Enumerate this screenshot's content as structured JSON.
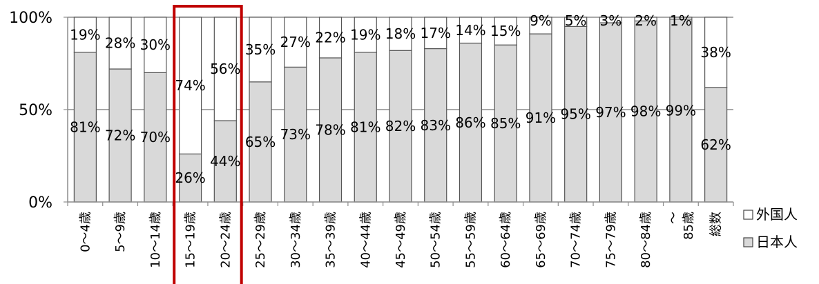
{
  "chart_data": {
    "type": "bar",
    "stacked": true,
    "normalized": true,
    "categories": [
      "0～4歳",
      "5～9歳",
      "10～14歳",
      "15～19歳",
      "20～24歳",
      "25～29歳",
      "30～34歳",
      "35～39歳",
      "40～44歳",
      "45～49歳",
      "50～54歳",
      "55～59歳",
      "60～64歳",
      "65～69歳",
      "70～74歳",
      "75～79歳",
      "80～84歳",
      "～\n85歳",
      "総数"
    ],
    "series": [
      {
        "name": "日本人",
        "color": "#d9d9d9",
        "values": [
          81,
          72,
          70,
          26,
          44,
          65,
          73,
          78,
          81,
          82,
          83,
          86,
          85,
          91,
          95,
          97,
          98,
          99,
          62
        ],
        "labels": [
          "81%",
          "72%",
          "70%",
          "26%",
          "44%",
          "65%",
          "73%",
          "78%",
          "81%",
          "82%",
          "83%",
          "86%",
          "85%",
          "91%",
          "95%",
          "97%",
          "98%",
          "99%",
          "62%"
        ]
      },
      {
        "name": "外国人",
        "color": "#ffffff",
        "values": [
          19,
          28,
          30,
          74,
          56,
          35,
          27,
          22,
          19,
          18,
          17,
          14,
          15,
          9,
          5,
          3,
          2,
          1,
          38
        ],
        "labels": [
          "19%",
          "28%",
          "30%",
          "74%",
          "56%",
          "35%",
          "27%",
          "22%",
          "19%",
          "18%",
          "17%",
          "14%",
          "15%",
          "9%",
          "5%",
          "3%",
          "2%",
          "1%",
          "38%"
        ]
      }
    ],
    "y_ticks": [
      "0%",
      "50%",
      "100%"
    ],
    "ylim": [
      0,
      100
    ],
    "grid": true,
    "legend_position": "right",
    "highlight": {
      "categories": [
        "15～19歳",
        "20～24歳"
      ],
      "color": "#c00000"
    }
  }
}
